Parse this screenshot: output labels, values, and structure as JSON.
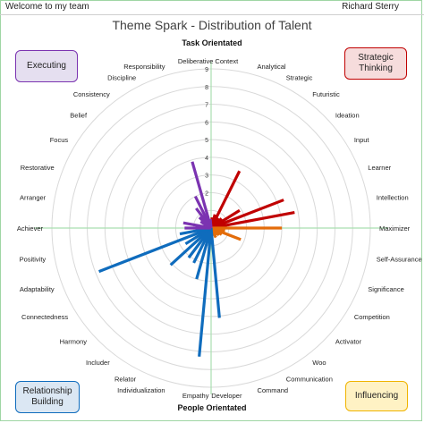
{
  "header": {
    "team_link": "Welcome to my team",
    "user_name": "Richard Sterry"
  },
  "colors": {
    "executing": "#7b33b1",
    "strategic": "#c00000",
    "influencing": "#e36c0a",
    "relationship": "#0f6cbd",
    "grid": "#d9d9d9",
    "axis": "#a9dfb0"
  },
  "corner_boxes": {
    "executing": {
      "label": "Executing",
      "bg": "#e5dff0",
      "border": "#7b33b1"
    },
    "strategic": {
      "label": "Strategic Thinking",
      "bg": "#f6dcdc",
      "border": "#c00000"
    },
    "relationship": {
      "label": "Relationship Building",
      "bg": "#dbe7f3",
      "border": "#0f6cbd"
    },
    "influencing": {
      "label": "Influencing",
      "bg": "#fff2c4",
      "border": "#f0b400"
    }
  },
  "chart_data": {
    "type": "radar",
    "title": "Theme Spark - Distribution of Talent",
    "top_label": "Task Orientated",
    "bottom_label": "People Orientated",
    "rlim": [
      0,
      9
    ],
    "r_ticks": [
      "1",
      "2",
      "3",
      "4",
      "5",
      "6",
      "7",
      "8",
      "9"
    ],
    "grid": true,
    "categories": [
      {
        "name": "Context",
        "group": "strategic",
        "value": 0.6
      },
      {
        "name": "Analytical",
        "group": "strategic",
        "value": 0.8
      },
      {
        "name": "Strategic",
        "group": "strategic",
        "value": 3.6
      },
      {
        "name": "Futuristic",
        "group": "strategic",
        "value": 0.7
      },
      {
        "name": "Ideation",
        "group": "strategic",
        "value": 0.8
      },
      {
        "name": "Input",
        "group": "strategic",
        "value": 1.9
      },
      {
        "name": "Learner",
        "group": "strategic",
        "value": 4.4
      },
      {
        "name": "Intellection",
        "group": "strategic",
        "value": 4.8
      },
      {
        "name": "Maximizer",
        "group": "influencing",
        "value": 4.0
      },
      {
        "name": "Self-Assurance",
        "group": "influencing",
        "value": 0.8
      },
      {
        "name": "Significance",
        "group": "influencing",
        "value": 1.8
      },
      {
        "name": "Competition",
        "group": "influencing",
        "value": 0.7
      },
      {
        "name": "Activator",
        "group": "influencing",
        "value": 0.6
      },
      {
        "name": "Woo",
        "group": "influencing",
        "value": 0.5
      },
      {
        "name": "Communication",
        "group": "influencing",
        "value": 0.6
      },
      {
        "name": "Command",
        "group": "influencing",
        "value": 0.4
      },
      {
        "name": "Developer",
        "group": "relationship",
        "value": 5.1
      },
      {
        "name": "Empathy",
        "group": "relationship",
        "value": 7.3
      },
      {
        "name": "Individualization",
        "group": "relationship",
        "value": 3.0
      },
      {
        "name": "Relator",
        "group": "relationship",
        "value": 2.2
      },
      {
        "name": "Includer",
        "group": "relationship",
        "value": 2.1
      },
      {
        "name": "Harmony",
        "group": "relationship",
        "value": 3.1
      },
      {
        "name": "Connectedness",
        "group": "relationship",
        "value": 1.7
      },
      {
        "name": "Adaptability",
        "group": "relationship",
        "value": 6.8
      },
      {
        "name": "Positivity",
        "group": "relationship",
        "value": 1.8
      },
      {
        "name": "Achiever",
        "group": "executing",
        "value": 1.5
      },
      {
        "name": "Arranger",
        "group": "executing",
        "value": 1.6
      },
      {
        "name": "Restorative",
        "group": "executing",
        "value": 0.4
      },
      {
        "name": "Focus",
        "group": "executing",
        "value": 0.7
      },
      {
        "name": "Belief",
        "group": "executing",
        "value": 0.9
      },
      {
        "name": "Consistency",
        "group": "executing",
        "value": 1.4
      },
      {
        "name": "Discipline",
        "group": "executing",
        "value": 2.0
      },
      {
        "name": "Responsibility",
        "group": "executing",
        "value": 3.9
      },
      {
        "name": "Deliberative",
        "group": "executing",
        "value": 0.5
      }
    ]
  }
}
